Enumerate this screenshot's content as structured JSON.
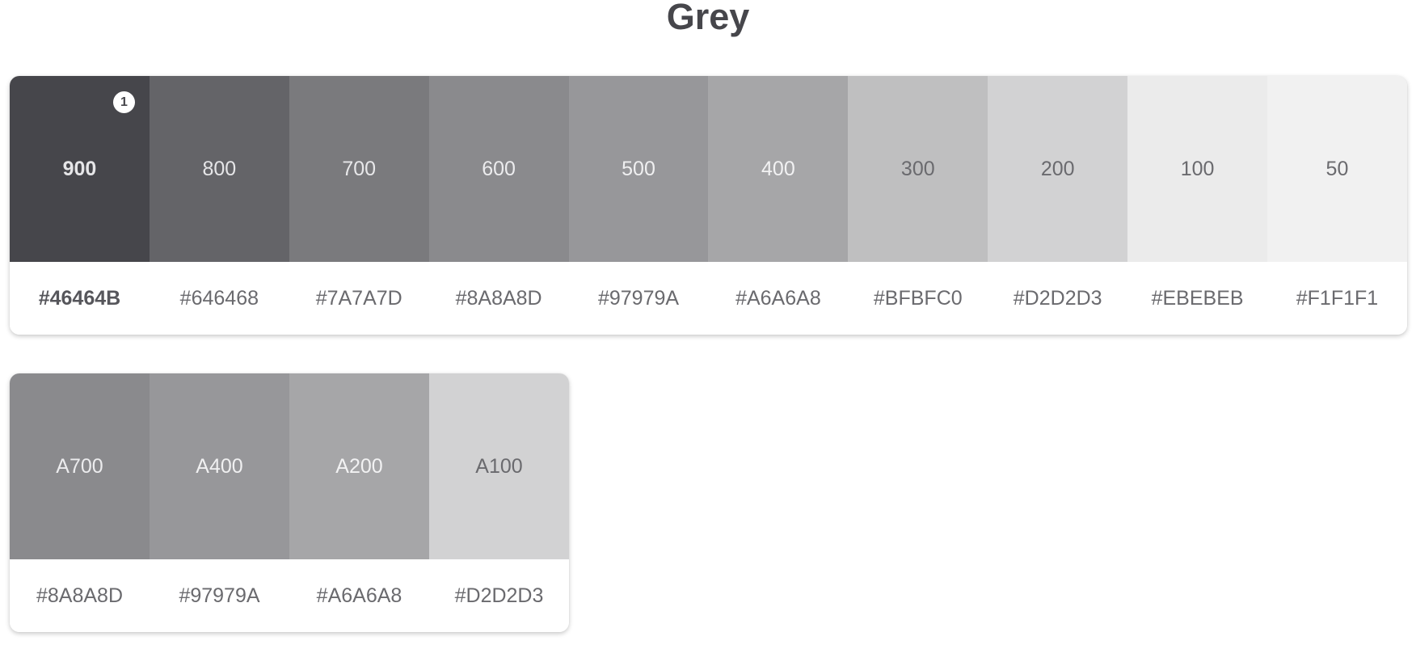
{
  "title": "Grey",
  "primary": [
    {
      "shade": "900",
      "hex": "#46464B",
      "color": "#46464B",
      "text_color": "#e6e6e8",
      "selected": true,
      "badge": "1"
    },
    {
      "shade": "800",
      "hex": "#646468",
      "color": "#646468",
      "text_color": "#e6e6e8"
    },
    {
      "shade": "700",
      "hex": "#7A7A7D",
      "color": "#7A7A7D",
      "text_color": "#e8e8ea"
    },
    {
      "shade": "600",
      "hex": "#8A8A8D",
      "color": "#8A8A8D",
      "text_color": "#ececee"
    },
    {
      "shade": "500",
      "hex": "#97979A",
      "color": "#97979A",
      "text_color": "#f0f0f1"
    },
    {
      "shade": "400",
      "hex": "#A6A6A8",
      "color": "#A6A6A8",
      "text_color": "#f2f2f3"
    },
    {
      "shade": "300",
      "hex": "#BFBFC0",
      "color": "#BFBFC0",
      "text_color": "#6a6a6e"
    },
    {
      "shade": "200",
      "hex": "#D2D2D3",
      "color": "#D2D2D3",
      "text_color": "#6a6a6e"
    },
    {
      "shade": "100",
      "hex": "#EBEBEB",
      "color": "#EBEBEB",
      "text_color": "#6a6a6e"
    },
    {
      "shade": "50",
      "hex": "#F1F1F1",
      "color": "#F1F1F1",
      "text_color": "#6a6a6e"
    }
  ],
  "accent": [
    {
      "shade": "A700",
      "hex": "#8A8A8D",
      "color": "#8A8A8D",
      "text_color": "#ececee"
    },
    {
      "shade": "A400",
      "hex": "#97979A",
      "color": "#97979A",
      "text_color": "#f0f0f1"
    },
    {
      "shade": "A200",
      "hex": "#A6A6A8",
      "color": "#A6A6A8",
      "text_color": "#f2f2f3"
    },
    {
      "shade": "A100",
      "hex": "#D2D2D3",
      "color": "#D2D2D3",
      "text_color": "#6a6a6e"
    }
  ]
}
